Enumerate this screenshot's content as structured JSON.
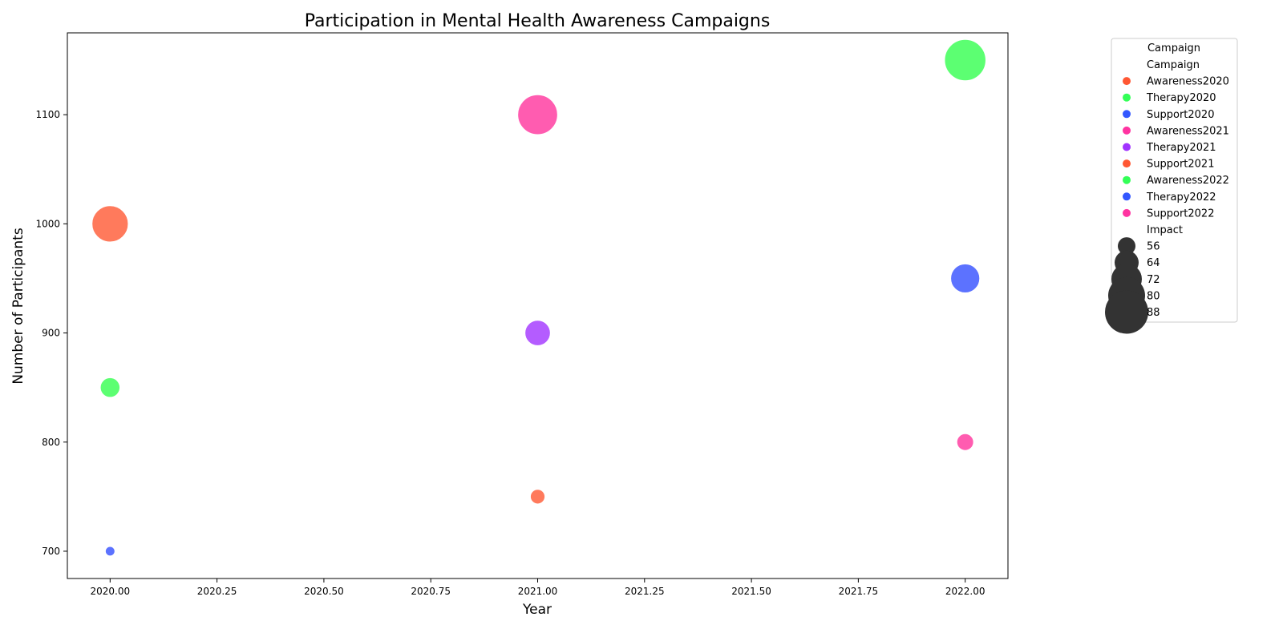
{
  "chart_data": {
    "type": "scatter",
    "title": "Participation in Mental Health Awareness Campaigns",
    "xlabel": "Year",
    "ylabel": "Number of Participants",
    "xlim": [
      2019.9,
      2022.1
    ],
    "ylim": [
      675,
      1175
    ],
    "xticks": [
      "2020.00",
      "2020.25",
      "2020.50",
      "2020.75",
      "2021.00",
      "2021.25",
      "2021.50",
      "2021.75",
      "2022.00"
    ],
    "yticks": [
      "700",
      "800",
      "900",
      "1000",
      "1100"
    ],
    "grid": false,
    "legend_position": "outside-right",
    "points": [
      {
        "campaign": "Awareness2020",
        "year": 2020,
        "participants": 1000,
        "impact": 85,
        "color": "#ff7a5c"
      },
      {
        "campaign": "Therapy2020",
        "year": 2020,
        "participants": 850,
        "impact": 62,
        "color": "#5cff72"
      },
      {
        "campaign": "Support2020",
        "year": 2020,
        "participants": 700,
        "impact": 48,
        "color": "#5c72ff"
      },
      {
        "campaign": "Awareness2021",
        "year": 2021,
        "participants": 1100,
        "impact": 90,
        "color": "#ff5cb0"
      },
      {
        "campaign": "Therapy2021",
        "year": 2021,
        "participants": 900,
        "impact": 70,
        "color": "#b45cff"
      },
      {
        "campaign": "Support2021",
        "year": 2021,
        "participants": 750,
        "impact": 55,
        "color": "#ff7a5c"
      },
      {
        "campaign": "Awareness2022",
        "year": 2022,
        "participants": 1150,
        "impact": 92,
        "color": "#5cff72"
      },
      {
        "campaign": "Therapy2022",
        "year": 2022,
        "participants": 950,
        "impact": 75,
        "color": "#5c72ff"
      },
      {
        "campaign": "Support2022",
        "year": 2022,
        "participants": 800,
        "impact": 58,
        "color": "#ff5cb0"
      }
    ],
    "legend": {
      "title": "Campaign",
      "hue_title": "Campaign",
      "hue_entries": [
        {
          "label": "Awareness2020",
          "color": "#ff5733"
        },
        {
          "label": "Therapy2020",
          "color": "#33ff57"
        },
        {
          "label": "Support2020",
          "color": "#3357ff"
        },
        {
          "label": "Awareness2021",
          "color": "#ff33a1"
        },
        {
          "label": "Therapy2021",
          "color": "#a133ff"
        },
        {
          "label": "Support2021",
          "color": "#ff5733"
        },
        {
          "label": "Awareness2022",
          "color": "#33ff57"
        },
        {
          "label": "Therapy2022",
          "color": "#3357ff"
        },
        {
          "label": "Support2022",
          "color": "#ff33a1"
        }
      ],
      "size_title": "Impact",
      "size_entries": [
        "56",
        "64",
        "72",
        "80",
        "88"
      ],
      "size_color": "#333333"
    }
  }
}
